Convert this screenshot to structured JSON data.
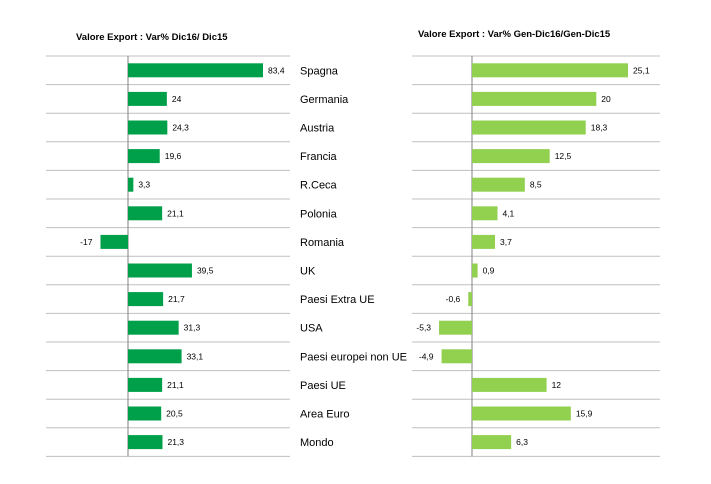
{
  "chart_data": [
    {
      "type": "bar",
      "orientation": "horizontal",
      "title": "Valore Export : Var%  Dic16/ Dic15",
      "categories": [
        "Spagna",
        "Germania",
        "Austria",
        "Francia",
        "R.Ceca",
        "Polonia",
        "Romania",
        "UK",
        "Paesi Extra UE",
        "USA",
        "Paesi europei non UE",
        "Paesi UE",
        "Area Euro",
        "Mondo"
      ],
      "values": [
        83.4,
        24,
        24.3,
        19.6,
        3.3,
        21.1,
        -17,
        39.5,
        21.7,
        31.3,
        33.1,
        21.1,
        20.5,
        21.3
      ],
      "data_labels": [
        "83,4",
        "24",
        "24,3",
        "19,6",
        "3,3",
        "21,1",
        "-17",
        "39,5",
        "21,7",
        "31,3",
        "33,1",
        "21,1",
        "20,5",
        "21,3"
      ],
      "xlim": [
        -33,
        100
      ],
      "bar_color": "#00a04a",
      "grid": true,
      "legend": "none"
    },
    {
      "type": "bar",
      "orientation": "horizontal",
      "title": "Valore Export : Var% Gen-Dic16/Gen-Dic15",
      "values": [
        25.1,
        20,
        18.3,
        12.5,
        8.5,
        4.1,
        3.7,
        0.9,
        -0.6,
        -5.3,
        -4.9,
        12,
        15.9,
        6.3
      ],
      "data_labels": [
        "25,1",
        "20",
        "18,3",
        "12,5",
        "8,5",
        "4,1",
        "3,7",
        "0,9",
        "-0,6",
        "-5,3",
        "-4,9",
        "12",
        "15,9",
        "6,3"
      ],
      "xlim": [
        -9,
        30
      ],
      "bar_color": "#92d050",
      "grid": true,
      "legend": "none"
    }
  ],
  "colors": {
    "gridline": "#bfbfbf",
    "axis": "#808080",
    "text": "#000000"
  }
}
